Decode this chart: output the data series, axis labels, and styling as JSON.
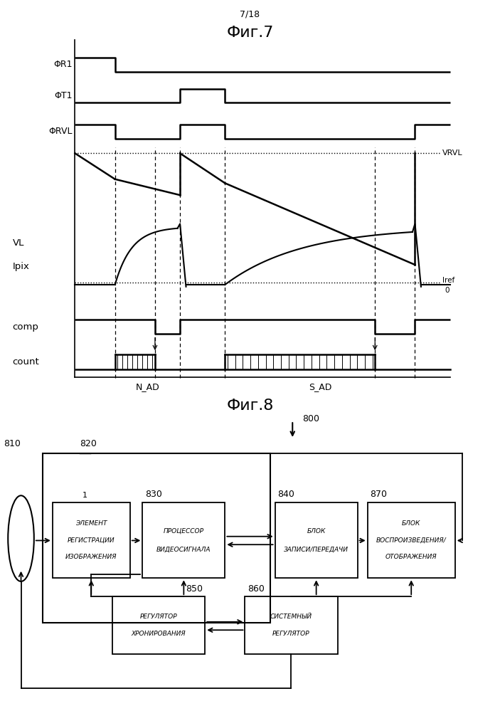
{
  "fig7_title": "Фиг.7",
  "fig8_title": "Фиг.8",
  "page_label": "7/18",
  "background": "#ffffff",
  "labels_fr1": "ΦR1",
  "labels_ft1": "ΦT1",
  "labels_frvl": "ΦRVL",
  "labels_vl": "VL",
  "labels_ipix": "Ipix",
  "labels_comp": "comp",
  "labels_count": "count",
  "labels_vrvl": "VRVL",
  "labels_iref": "Iref",
  "labels_zero": "0",
  "labels_nad": "N_AD",
  "labels_sad": "S_AD",
  "fig8_labels": {
    "800": "800",
    "810": "810",
    "820": "820",
    "830": "830",
    "840": "840",
    "850": "850",
    "860": "860",
    "870": "870",
    "box1": "1",
    "b1_line1": "ЭЛЕМЕНТ",
    "b1_line2": "РЕГИСТРАЦИИ",
    "b1_line3": "ИЗОБРАЖЕНИЯ",
    "b2_line1": "ПРОЦЕССОР",
    "b2_line2": "ВИДЕОСИГНАЛА",
    "b3_line1": "БЛОК",
    "b3_line2": "ЗАПИСИ/ПЕРЕДАЧИ",
    "b4_line1": "БЛОК",
    "b4_line2": "ВОСПРОИЗВЕДЕНИЯ/",
    "b4_line3": "ОТОБРАЖЕНИЯ",
    "b5_line1": "РЕГУЛЯТОР",
    "b5_line2": "ХРОНИРОВАНИЯ",
    "b6_line1": "СИСТЕМНЫЙ",
    "b6_line2": "РЕГУЛЯТОР"
  }
}
